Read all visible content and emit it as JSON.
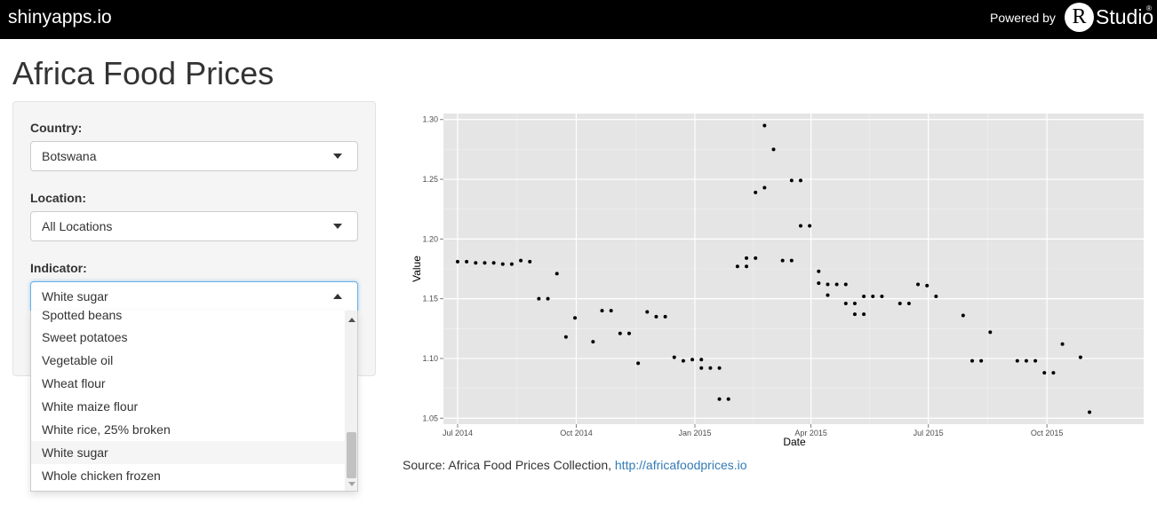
{
  "topbar": {
    "brand": "shinyapps.io",
    "powered_by": "Powered by",
    "logo_letter": "R",
    "logo_text": "Studio",
    "logo_reg": "®"
  },
  "page": {
    "title": "Africa Food Prices"
  },
  "controls": {
    "country": {
      "label": "Country:",
      "value": "Botswana"
    },
    "location": {
      "label": "Location:",
      "value": "All Locations"
    },
    "indicator": {
      "label": "Indicator:",
      "value": "White sugar",
      "options": [
        "Spotted beans",
        "Sweet potatoes",
        "Vegetable oil",
        "Wheat flour",
        "White maize flour",
        "White rice, 25% broken",
        "White sugar",
        "Whole chicken frozen"
      ],
      "selected_index": 6
    }
  },
  "colors": {
    "panel_bg": "#e5e5e5",
    "grid": "#ffffff",
    "point": "#000000",
    "link": "#337ab7",
    "focus": "#66afe9"
  },
  "chart_data": {
    "type": "scatter",
    "xlabel": "Date",
    "ylabel": "Value",
    "xlim": [
      "2014-06-20",
      "2015-12-15"
    ],
    "ylim": [
      1.045,
      1.305
    ],
    "grid": true,
    "x_ticks": [
      {
        "date": "2014-07-01",
        "label": "Jul 2014"
      },
      {
        "date": "2014-10-01",
        "label": "Oct 2014"
      },
      {
        "date": "2015-01-01",
        "label": "Jan 2015"
      },
      {
        "date": "2015-04-01",
        "label": "Apr 2015"
      },
      {
        "date": "2015-07-01",
        "label": "Jul 2015"
      },
      {
        "date": "2015-10-01",
        "label": "Oct 2015"
      }
    ],
    "y_ticks": [
      1.05,
      1.1,
      1.15,
      1.2,
      1.25,
      1.3
    ],
    "points": [
      {
        "x": "2014-07-01",
        "y": 1.181
      },
      {
        "x": "2014-07-08",
        "y": 1.181
      },
      {
        "x": "2014-07-15",
        "y": 1.18
      },
      {
        "x": "2014-07-22",
        "y": 1.18
      },
      {
        "x": "2014-07-29",
        "y": 1.18
      },
      {
        "x": "2014-08-05",
        "y": 1.179
      },
      {
        "x": "2014-08-12",
        "y": 1.179
      },
      {
        "x": "2014-08-19",
        "y": 1.182
      },
      {
        "x": "2014-08-26",
        "y": 1.181
      },
      {
        "x": "2014-09-02",
        "y": 1.15
      },
      {
        "x": "2014-09-09",
        "y": 1.15
      },
      {
        "x": "2014-09-16",
        "y": 1.171
      },
      {
        "x": "2014-09-23",
        "y": 1.118
      },
      {
        "x": "2014-09-30",
        "y": 1.134
      },
      {
        "x": "2014-10-14",
        "y": 1.114
      },
      {
        "x": "2014-10-21",
        "y": 1.14
      },
      {
        "x": "2014-10-28",
        "y": 1.14
      },
      {
        "x": "2014-11-04",
        "y": 1.121
      },
      {
        "x": "2014-11-11",
        "y": 1.121
      },
      {
        "x": "2014-11-18",
        "y": 1.096
      },
      {
        "x": "2014-11-25",
        "y": 1.139
      },
      {
        "x": "2014-12-02",
        "y": 1.135
      },
      {
        "x": "2014-12-09",
        "y": 1.135
      },
      {
        "x": "2014-12-16",
        "y": 1.101
      },
      {
        "x": "2014-12-23",
        "y": 1.098
      },
      {
        "x": "2014-12-30",
        "y": 1.099
      },
      {
        "x": "2015-01-06",
        "y": 1.099
      },
      {
        "x": "2015-01-06",
        "y": 1.092
      },
      {
        "x": "2015-01-13",
        "y": 1.092
      },
      {
        "x": "2015-01-20",
        "y": 1.092
      },
      {
        "x": "2015-01-20",
        "y": 1.066
      },
      {
        "x": "2015-01-27",
        "y": 1.066
      },
      {
        "x": "2015-02-03",
        "y": 1.177
      },
      {
        "x": "2015-02-10",
        "y": 1.177
      },
      {
        "x": "2015-02-10",
        "y": 1.184
      },
      {
        "x": "2015-02-17",
        "y": 1.184
      },
      {
        "x": "2015-02-17",
        "y": 1.239
      },
      {
        "x": "2015-02-24",
        "y": 1.243
      },
      {
        "x": "2015-02-24",
        "y": 1.295
      },
      {
        "x": "2015-03-03",
        "y": 1.275
      },
      {
        "x": "2015-03-10",
        "y": 1.182
      },
      {
        "x": "2015-03-17",
        "y": 1.182
      },
      {
        "x": "2015-03-17",
        "y": 1.249
      },
      {
        "x": "2015-03-24",
        "y": 1.249
      },
      {
        "x": "2015-03-24",
        "y": 1.211
      },
      {
        "x": "2015-03-31",
        "y": 1.211
      },
      {
        "x": "2015-04-07",
        "y": 1.173
      },
      {
        "x": "2015-04-07",
        "y": 1.163
      },
      {
        "x": "2015-04-14",
        "y": 1.162
      },
      {
        "x": "2015-04-14",
        "y": 1.153
      },
      {
        "x": "2015-04-21",
        "y": 1.162
      },
      {
        "x": "2015-04-28",
        "y": 1.162
      },
      {
        "x": "2015-04-28",
        "y": 1.146
      },
      {
        "x": "2015-05-05",
        "y": 1.146
      },
      {
        "x": "2015-05-05",
        "y": 1.137
      },
      {
        "x": "2015-05-12",
        "y": 1.137
      },
      {
        "x": "2015-05-12",
        "y": 1.152
      },
      {
        "x": "2015-05-19",
        "y": 1.152
      },
      {
        "x": "2015-05-26",
        "y": 1.152
      },
      {
        "x": "2015-06-09",
        "y": 1.146
      },
      {
        "x": "2015-06-16",
        "y": 1.146
      },
      {
        "x": "2015-06-23",
        "y": 1.162
      },
      {
        "x": "2015-06-30",
        "y": 1.161
      },
      {
        "x": "2015-07-07",
        "y": 1.152
      },
      {
        "x": "2015-07-28",
        "y": 1.136
      },
      {
        "x": "2015-08-04",
        "y": 1.098
      },
      {
        "x": "2015-08-11",
        "y": 1.098
      },
      {
        "x": "2015-08-18",
        "y": 1.122
      },
      {
        "x": "2015-09-08",
        "y": 1.098
      },
      {
        "x": "2015-09-15",
        "y": 1.098
      },
      {
        "x": "2015-09-22",
        "y": 1.098
      },
      {
        "x": "2015-09-29",
        "y": 1.088
      },
      {
        "x": "2015-10-06",
        "y": 1.088
      },
      {
        "x": "2015-10-13",
        "y": 1.112
      },
      {
        "x": "2015-10-27",
        "y": 1.101
      },
      {
        "x": "2015-11-03",
        "y": 1.055
      }
    ]
  },
  "source": {
    "prefix": "Source: Africa Food Prices Collection, ",
    "link_text": "http://africafoodprices.io"
  }
}
